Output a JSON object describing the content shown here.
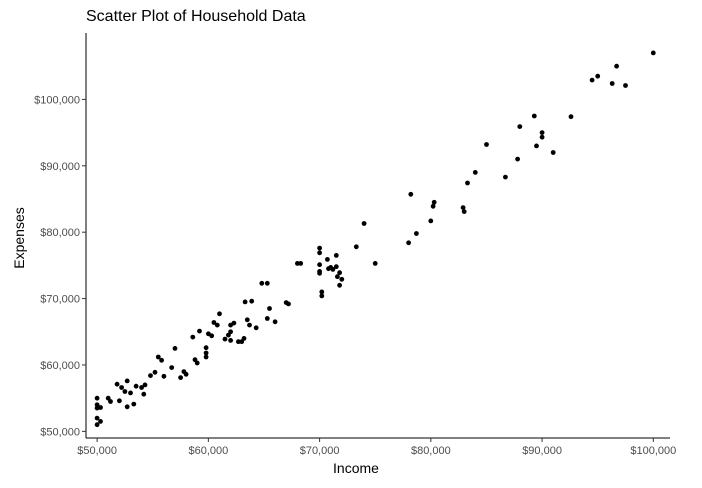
{
  "chart_data": {
    "type": "scatter",
    "title": "Scatter Plot of Household Data",
    "xlabel": "Income",
    "ylabel": "Expenses",
    "xlim": [
      49000,
      101500
    ],
    "ylim": [
      49000,
      110000
    ],
    "grid": false,
    "x_ticks": [
      {
        "value": 50000,
        "label": "$50,000"
      },
      {
        "value": 60000,
        "label": "$60,000"
      },
      {
        "value": 70000,
        "label": "$70,000"
      },
      {
        "value": 80000,
        "label": "$80,000"
      },
      {
        "value": 90000,
        "label": "$90,000"
      },
      {
        "value": 100000,
        "label": "$100,000"
      }
    ],
    "y_ticks": [
      {
        "value": 50000,
        "label": "$50,000"
      },
      {
        "value": 60000,
        "label": "$60,000"
      },
      {
        "value": 70000,
        "label": "$70,000"
      },
      {
        "value": 80000,
        "label": "$80,000"
      },
      {
        "value": 90000,
        "label": "$90,000"
      },
      {
        "value": 100000,
        "label": "$100,000"
      }
    ],
    "point_color": "#000000",
    "points": [
      [
        50000,
        55000
      ],
      [
        50000,
        54000
      ],
      [
        50000,
        53500
      ],
      [
        50000,
        52000
      ],
      [
        50000,
        51000
      ],
      [
        50300,
        51500
      ],
      [
        50300,
        53600
      ],
      [
        51000,
        55000
      ],
      [
        51200,
        54500
      ],
      [
        51800,
        57100
      ],
      [
        52000,
        54600
      ],
      [
        52200,
        56600
      ],
      [
        52500,
        56000
      ],
      [
        52700,
        57600
      ],
      [
        52700,
        53700
      ],
      [
        53000,
        55800
      ],
      [
        53300,
        54100
      ],
      [
        53500,
        56800
      ],
      [
        54000,
        56600
      ],
      [
        54200,
        55600
      ],
      [
        54300,
        57000
      ],
      [
        54800,
        58400
      ],
      [
        55200,
        58900
      ],
      [
        55500,
        61200
      ],
      [
        55800,
        60700
      ],
      [
        56000,
        58300
      ],
      [
        56700,
        59600
      ],
      [
        57000,
        62500
      ],
      [
        57500,
        58100
      ],
      [
        57800,
        59000
      ],
      [
        58000,
        58600
      ],
      [
        58600,
        64200
      ],
      [
        58800,
        60800
      ],
      [
        59000,
        60300
      ],
      [
        59200,
        65100
      ],
      [
        59800,
        62600
      ],
      [
        59800,
        61200
      ],
      [
        59800,
        61800
      ],
      [
        60000,
        64700
      ],
      [
        60300,
        64400
      ],
      [
        60500,
        66400
      ],
      [
        60800,
        66000
      ],
      [
        61000,
        67700
      ],
      [
        61500,
        63900
      ],
      [
        61800,
        64500
      ],
      [
        62000,
        65000
      ],
      [
        62000,
        66000
      ],
      [
        62000,
        63700
      ],
      [
        62300,
        66300
      ],
      [
        62700,
        63500
      ],
      [
        63000,
        63500
      ],
      [
        63200,
        64000
      ],
      [
        63300,
        69500
      ],
      [
        63500,
        66800
      ],
      [
        63700,
        66000
      ],
      [
        63900,
        69600
      ],
      [
        64300,
        65600
      ],
      [
        64800,
        72300
      ],
      [
        65300,
        72300
      ],
      [
        65300,
        67000
      ],
      [
        65500,
        68500
      ],
      [
        66000,
        66500
      ],
      [
        67000,
        69400
      ],
      [
        67200,
        69200
      ],
      [
        68000,
        75300
      ],
      [
        68300,
        75300
      ],
      [
        70000,
        77600
      ],
      [
        70000,
        76900
      ],
      [
        70000,
        75100
      ],
      [
        70000,
        74100
      ],
      [
        70000,
        73800
      ],
      [
        70200,
        71000
      ],
      [
        70200,
        70400
      ],
      [
        70800,
        74500
      ],
      [
        70700,
        75900
      ],
      [
        71000,
        74700
      ],
      [
        71200,
        74400
      ],
      [
        71500,
        76500
      ],
      [
        71500,
        74800
      ],
      [
        71800,
        73900
      ],
      [
        72000,
        72900
      ],
      [
        71800,
        72000
      ],
      [
        71600,
        73300
      ],
      [
        73300,
        77800
      ],
      [
        74000,
        81300
      ],
      [
        75000,
        75300
      ],
      [
        78000,
        78400
      ],
      [
        78200,
        85700
      ],
      [
        78700,
        79800
      ],
      [
        80000,
        81700
      ],
      [
        80200,
        83900
      ],
      [
        80300,
        84500
      ],
      [
        82900,
        83700
      ],
      [
        83000,
        83100
      ],
      [
        83300,
        87400
      ],
      [
        84000,
        89000
      ],
      [
        85000,
        93200
      ],
      [
        86700,
        88300
      ],
      [
        87800,
        91000
      ],
      [
        88000,
        95900
      ],
      [
        89300,
        97500
      ],
      [
        89500,
        93000
      ],
      [
        90000,
        95000
      ],
      [
        90000,
        94300
      ],
      [
        91000,
        92000
      ],
      [
        92600,
        97400
      ],
      [
        94500,
        102900
      ],
      [
        95000,
        103500
      ],
      [
        96300,
        102400
      ],
      [
        96700,
        105000
      ],
      [
        97500,
        102100
      ],
      [
        100000,
        107000
      ]
    ]
  }
}
